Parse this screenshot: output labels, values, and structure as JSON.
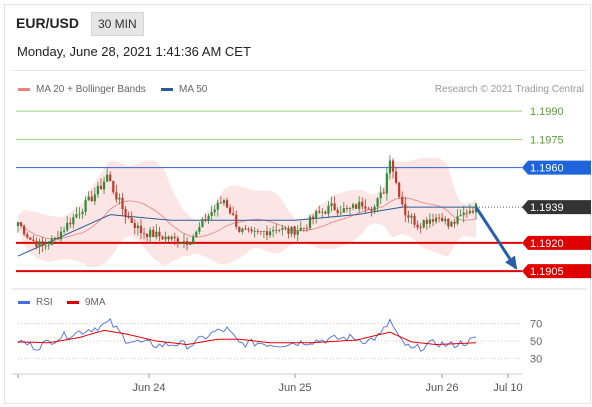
{
  "header": {
    "symbol": "EUR/USD",
    "timeframe": "30 MIN",
    "timestamp": "Monday, June 28, 2021 1:41:36 AM CET"
  },
  "legend": [
    {
      "label": "MA 20 + Bollinger Bands",
      "color": "#f08080"
    },
    {
      "label": "MA 50",
      "color": "#2a5a9a"
    }
  ],
  "credit": "Research © 2021 Trading Central",
  "rsi_legend": [
    {
      "label": "RSI",
      "color": "#4a6ee0"
    },
    {
      "label": "9MA",
      "color": "#e00000"
    }
  ],
  "colors": {
    "up": "#2e8b3a",
    "down": "#c0392b",
    "support": "#e00000",
    "resistance_line": "#4a74d8",
    "target": "#9acd7c",
    "last": "#333333",
    "arrow": "#2b5ea7"
  },
  "chart_data": [
    {
      "type": "candlestick",
      "title": "",
      "ylim": [
        1.1895,
        1.1998
      ],
      "x_ticks": [
        "Jun 24",
        "Jun 25",
        "Jun 26",
        "Jul 10"
      ],
      "levels": [
        {
          "value": 1.199,
          "label": "1.1990",
          "style": "target"
        },
        {
          "value": 1.1975,
          "label": "1.1975",
          "style": "target"
        },
        {
          "value": 1.196,
          "label": "1.1960",
          "style": "resistance"
        },
        {
          "value": 1.1939,
          "label": "1.1939",
          "style": "last"
        },
        {
          "value": 1.192,
          "label": "1.1920",
          "style": "support"
        },
        {
          "value": 1.1905,
          "label": "1.1905",
          "style": "support"
        }
      ],
      "close_anchors": [
        [
          0,
          1.1931
        ],
        [
          4,
          1.1922
        ],
        [
          8,
          1.1918
        ],
        [
          12,
          1.1922
        ],
        [
          15,
          1.1928
        ],
        [
          20,
          1.1937
        ],
        [
          24,
          1.1944
        ],
        [
          27,
          1.195
        ],
        [
          29,
          1.1956
        ],
        [
          31,
          1.1948
        ],
        [
          35,
          1.1935
        ],
        [
          40,
          1.1926
        ],
        [
          45,
          1.1924
        ],
        [
          50,
          1.1922
        ],
        [
          55,
          1.1921
        ],
        [
          58,
          1.1925
        ],
        [
          61,
          1.1933
        ],
        [
          64,
          1.1938
        ],
        [
          67,
          1.1943
        ],
        [
          69,
          1.1937
        ],
        [
          72,
          1.1927
        ],
        [
          76,
          1.1924
        ],
        [
          80,
          1.1926
        ],
        [
          84,
          1.1928
        ],
        [
          88,
          1.1926
        ],
        [
          93,
          1.1928
        ],
        [
          97,
          1.1935
        ],
        [
          102,
          1.1939
        ],
        [
          107,
          1.1937
        ],
        [
          112,
          1.1941
        ],
        [
          116,
          1.1939
        ],
        [
          119,
          1.1948
        ],
        [
          121,
          1.1966
        ],
        [
          123,
          1.1952
        ],
        [
          126,
          1.1936
        ],
        [
          130,
          1.193
        ],
        [
          134,
          1.1933
        ],
        [
          138,
          1.1934
        ],
        [
          140,
          1.1929
        ],
        [
          143,
          1.1932
        ],
        [
          146,
          1.1937
        ],
        [
          149,
          1.1939
        ]
      ],
      "ma50_anchors": [
        [
          0,
          1.1913
        ],
        [
          15,
          1.1924
        ],
        [
          30,
          1.1935
        ],
        [
          50,
          1.1932
        ],
        [
          70,
          1.1932
        ],
        [
          90,
          1.1932
        ],
        [
          110,
          1.1935
        ],
        [
          125,
          1.1939
        ],
        [
          149,
          1.1939
        ]
      ],
      "projection": {
        "from": 1.1939,
        "to": 1.1905
      }
    },
    {
      "type": "line",
      "title": "",
      "ylim": [
        15,
        85
      ],
      "y_ticks": [
        70,
        50,
        30
      ],
      "rsi_anchors": [
        [
          0,
          50
        ],
        [
          6,
          43
        ],
        [
          14,
          55
        ],
        [
          22,
          62
        ],
        [
          27,
          67
        ],
        [
          30,
          71
        ],
        [
          35,
          52
        ],
        [
          40,
          48
        ],
        [
          46,
          45
        ],
        [
          52,
          47
        ],
        [
          56,
          45
        ],
        [
          61,
          55
        ],
        [
          64,
          60
        ],
        [
          68,
          63
        ],
        [
          72,
          47
        ],
        [
          78,
          48
        ],
        [
          84,
          46
        ],
        [
          90,
          48
        ],
        [
          96,
          50
        ],
        [
          102,
          52
        ],
        [
          108,
          54
        ],
        [
          114,
          50
        ],
        [
          118,
          57
        ],
        [
          121,
          73
        ],
        [
          124,
          52
        ],
        [
          128,
          40
        ],
        [
          132,
          44
        ],
        [
          136,
          48
        ],
        [
          140,
          45
        ],
        [
          145,
          48
        ],
        [
          149,
          52
        ]
      ],
      "ma9_anchors": [
        [
          0,
          49
        ],
        [
          10,
          48
        ],
        [
          20,
          54
        ],
        [
          28,
          62
        ],
        [
          35,
          58
        ],
        [
          45,
          50
        ],
        [
          55,
          46
        ],
        [
          65,
          52
        ],
        [
          72,
          52
        ],
        [
          82,
          48
        ],
        [
          95,
          48
        ],
        [
          110,
          51
        ],
        [
          121,
          60
        ],
        [
          128,
          49
        ],
        [
          136,
          46
        ],
        [
          149,
          48
        ]
      ]
    }
  ]
}
